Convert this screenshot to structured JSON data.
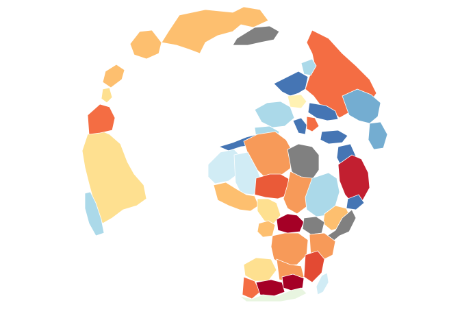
{
  "map": {
    "projection": "orthographic",
    "background": "#ffffff",
    "border_color": "#ffffff",
    "regions": [
      {
        "name": "greenland",
        "color": "#fdbf6f"
      },
      {
        "name": "canada-west",
        "color": "#fdbf6f"
      },
      {
        "name": "alaska",
        "color": "#fdbf6f"
      },
      {
        "name": "arctic-archipelago",
        "color": "#fee090"
      },
      {
        "name": "svalbard",
        "color": "#808080"
      },
      {
        "name": "russia",
        "color": "#f46d43"
      },
      {
        "name": "scandinavia",
        "color": "#4575b4"
      },
      {
        "name": "finland",
        "color": "#abd9e9"
      },
      {
        "name": "uk-ireland",
        "color": "#fff2b3"
      },
      {
        "name": "central-europe",
        "color": "#abd9e9"
      },
      {
        "name": "eastern-europe",
        "color": "#4575b4"
      },
      {
        "name": "ukraine",
        "color": "#74add1"
      },
      {
        "name": "iberia",
        "color": "#abd9e9"
      },
      {
        "name": "italy",
        "color": "#4575b4"
      },
      {
        "name": "balkans",
        "color": "#f46d43"
      },
      {
        "name": "turkey",
        "color": "#4575b4"
      },
      {
        "name": "kazakhstan",
        "color": "#74add1"
      },
      {
        "name": "usa",
        "color": "#fee090"
      },
      {
        "name": "western-us",
        "color": "#f46d43"
      },
      {
        "name": "mexico",
        "color": "#abd9e9"
      },
      {
        "name": "morocco",
        "color": "#4575b4"
      },
      {
        "name": "algeria",
        "color": "#f79a59"
      },
      {
        "name": "libya",
        "color": "#808080"
      },
      {
        "name": "egypt",
        "color": "#4575b4"
      },
      {
        "name": "mauritania",
        "color": "#d1ecf5"
      },
      {
        "name": "mali",
        "color": "#d1ecf5"
      },
      {
        "name": "niger",
        "color": "#ea5a38"
      },
      {
        "name": "chad",
        "color": "#f79a59"
      },
      {
        "name": "sudan",
        "color": "#abd9e9"
      },
      {
        "name": "saudi-arabia",
        "color": "#c21f30"
      },
      {
        "name": "yemen",
        "color": "#4575b4"
      },
      {
        "name": "ethiopia",
        "color": "#fdbf6f"
      },
      {
        "name": "somalia",
        "color": "#808080"
      },
      {
        "name": "west-africa",
        "color": "#fdbf6f"
      },
      {
        "name": "nigeria",
        "color": "#fee090"
      },
      {
        "name": "cameroon",
        "color": "#fdbf6f"
      },
      {
        "name": "car",
        "color": "#a50026"
      },
      {
        "name": "south-sudan",
        "color": "#808080"
      },
      {
        "name": "drc",
        "color": "#f79a59"
      },
      {
        "name": "kenya-tanzania",
        "color": "#f79a59"
      },
      {
        "name": "angola",
        "color": "#fee090"
      },
      {
        "name": "zambia",
        "color": "#f79a59"
      },
      {
        "name": "mozambique",
        "color": "#e34a33"
      },
      {
        "name": "namibia",
        "color": "#f46d43"
      },
      {
        "name": "botswana",
        "color": "#a50026"
      },
      {
        "name": "zimbabwe",
        "color": "#a50026"
      },
      {
        "name": "south-africa",
        "color": "#e8f5e0"
      },
      {
        "name": "madagascar",
        "color": "#d1ecf5"
      }
    ]
  }
}
